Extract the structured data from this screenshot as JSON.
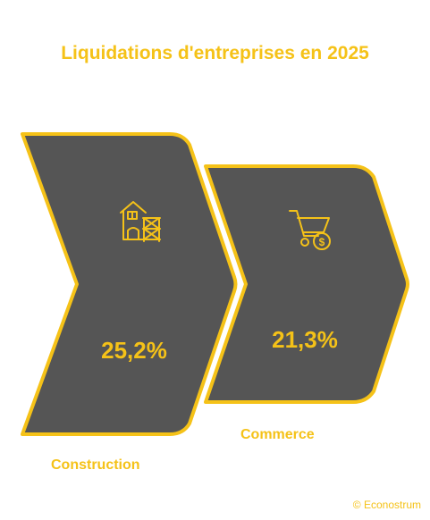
{
  "title": "Liquidations d'entreprises en 2025",
  "credit": "© Econostrum",
  "colors": {
    "accent": "#f5c218",
    "shape_fill": "#555555"
  },
  "chart_data": {
    "type": "bar",
    "title": "Liquidations d'entreprises en 2025",
    "categories": [
      "Construction",
      "Commerce"
    ],
    "values": [
      25.2,
      21.3
    ],
    "value_labels": [
      "25,2%",
      "21,3%"
    ],
    "icons": [
      "building-scaffold-icon",
      "shopping-cart-dollar-icon"
    ],
    "unit": "%"
  }
}
